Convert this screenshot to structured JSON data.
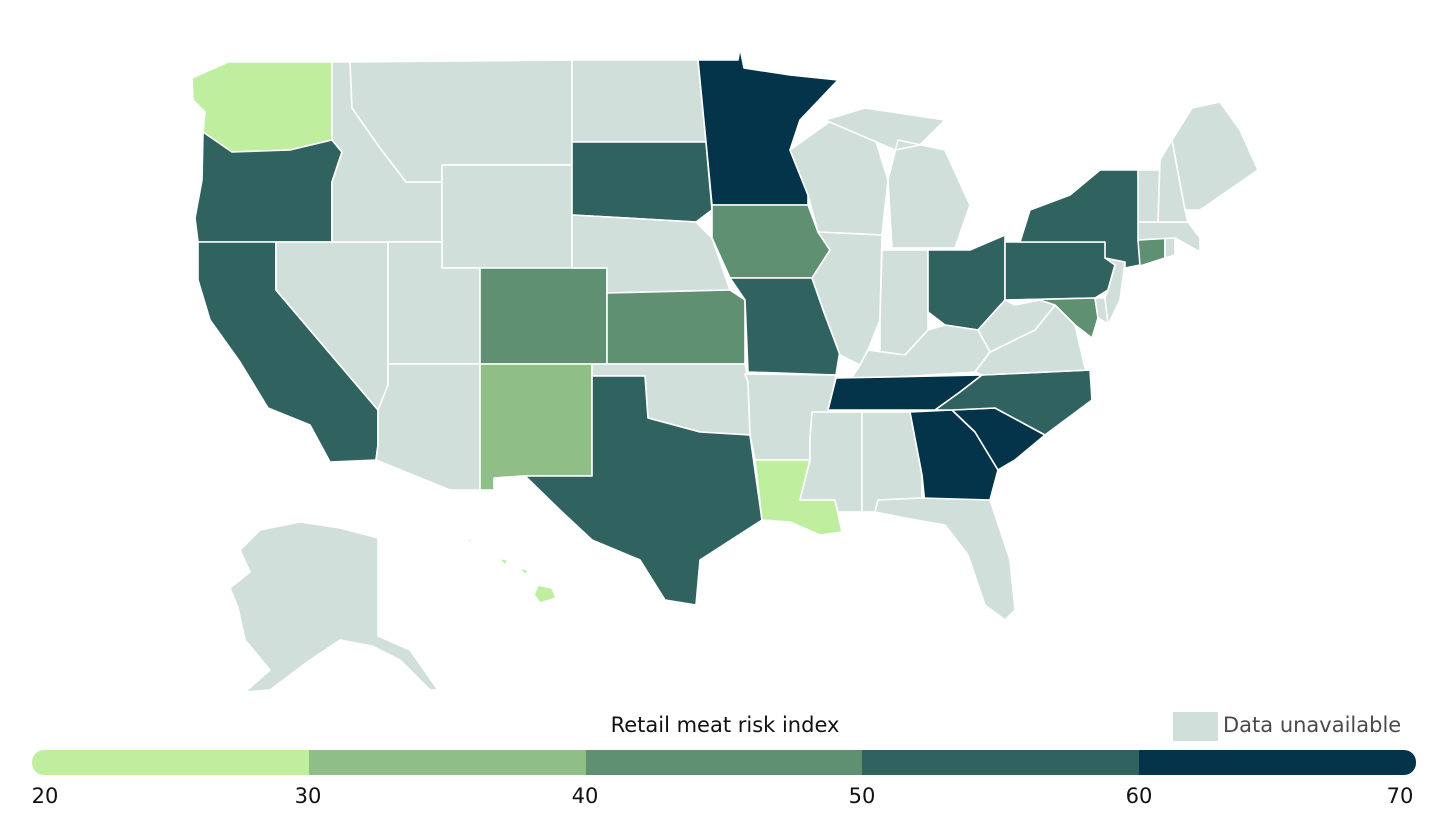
{
  "legend": {
    "title": "Retail meat risk index",
    "unavailable_label": "Data unavailable",
    "ticks": [
      "20",
      "30",
      "40",
      "50",
      "60",
      "70"
    ],
    "bins": [
      {
        "range": [
          20,
          30
        ],
        "color": "#bfee9f"
      },
      {
        "range": [
          30,
          40
        ],
        "color": "#8fbf86"
      },
      {
        "range": [
          40,
          50
        ],
        "color": "#5f9072"
      },
      {
        "range": [
          50,
          60
        ],
        "color": "#306360"
      },
      {
        "range": [
          60,
          70
        ],
        "color": "#03344a"
      }
    ],
    "unavailable_color": "#d0dfd9"
  },
  "states": {
    "WA": {
      "bin": 0
    },
    "OR": {
      "bin": 3
    },
    "CA": {
      "bin": 3
    },
    "NV": {
      "bin": null
    },
    "ID": {
      "bin": null
    },
    "MT": {
      "bin": null
    },
    "WY": {
      "bin": null
    },
    "UT": {
      "bin": null
    },
    "AZ": {
      "bin": null
    },
    "CO": {
      "bin": 2
    },
    "NM": {
      "bin": 1
    },
    "ND": {
      "bin": null
    },
    "SD": {
      "bin": 3
    },
    "NE": {
      "bin": null
    },
    "KS": {
      "bin": 2
    },
    "OK": {
      "bin": null
    },
    "TX": {
      "bin": 3
    },
    "MN": {
      "bin": 4
    },
    "IA": {
      "bin": 2
    },
    "MO": {
      "bin": 3
    },
    "AR": {
      "bin": null
    },
    "LA": {
      "bin": 0
    },
    "WI": {
      "bin": null
    },
    "IL": {
      "bin": null
    },
    "MI": {
      "bin": null
    },
    "IN": {
      "bin": null
    },
    "OH": {
      "bin": 3
    },
    "KY": {
      "bin": null
    },
    "TN": {
      "bin": 4
    },
    "MS": {
      "bin": null
    },
    "AL": {
      "bin": null
    },
    "GA": {
      "bin": 4
    },
    "FL": {
      "bin": null
    },
    "SC": {
      "bin": 4
    },
    "NC": {
      "bin": 3
    },
    "VA": {
      "bin": null
    },
    "WV": {
      "bin": null
    },
    "MD": {
      "bin": 2
    },
    "DE": {
      "bin": null
    },
    "NJ": {
      "bin": null
    },
    "PA": {
      "bin": 3
    },
    "NY": {
      "bin": 3
    },
    "CT": {
      "bin": 2
    },
    "RI": {
      "bin": null
    },
    "MA": {
      "bin": null
    },
    "VT": {
      "bin": null
    },
    "NH": {
      "bin": null
    },
    "ME": {
      "bin": null
    },
    "AK": {
      "bin": null
    },
    "HI": {
      "bin": 0
    }
  }
}
